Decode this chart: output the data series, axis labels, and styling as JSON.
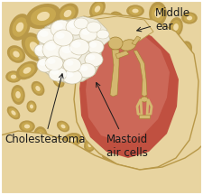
{
  "colors": {
    "bone_light": "#e8d4a0",
    "bone_mid": "#d4b870",
    "bone_dark": "#b89848",
    "bone_hole_dark": "#c8a850",
    "bone_hole_light": "#f0dca8",
    "cholesteatoma_main": "#f0ede0",
    "cholesteatoma_lump": "#faf8f0",
    "cholesteatoma_shadow": "#c8bfa0",
    "cavity_red": "#c05040",
    "cavity_red2": "#d06858",
    "cavity_pink": "#d88070",
    "ossicle": "#d4b870",
    "ossicle_edge": "#a08030",
    "bg": "#dfc890",
    "text": "#1a1a1a"
  },
  "labels": {
    "middle_ear": "Middle\near",
    "cholesteatoma": "Cholesteatoma",
    "mastoid_air_cells": "Mastoid\nair cells"
  },
  "font_size": 8.5
}
